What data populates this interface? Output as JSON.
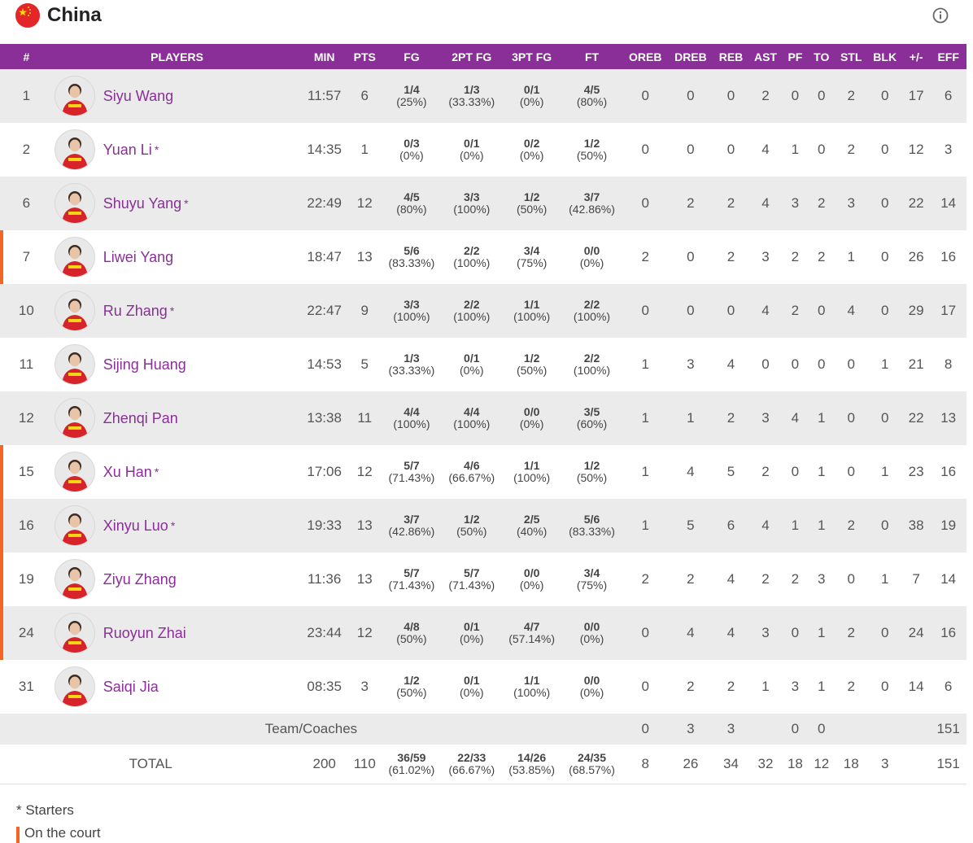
{
  "team": {
    "name": "China",
    "flag_icon": "china-flag-icon",
    "info_icon": "info-icon"
  },
  "colors": {
    "header_bg": "#8a2f98",
    "player_link": "#8a2f98",
    "on_court": "#f26522",
    "row_alt": "#ebebeb"
  },
  "columns": [
    "#",
    "PLAYERS",
    "MIN",
    "PTS",
    "FG",
    "2PT FG",
    "3PT FG",
    "FT",
    "OREB",
    "DREB",
    "REB",
    "AST",
    "PF",
    "TO",
    "STL",
    "BLK",
    "+/-",
    "EFF"
  ],
  "players": [
    {
      "num": "1",
      "name": "Siyu Wang",
      "star": "",
      "min": "11:57",
      "pts": "6",
      "fg": "1/4",
      "fg_pct": "(25%)",
      "fg2": "1/3",
      "fg2_pct": "(33.33%)",
      "fg3": "0/1",
      "fg3_pct": "(0%)",
      "ft": "4/5",
      "ft_pct": "(80%)",
      "oreb": "0",
      "dreb": "0",
      "reb": "0",
      "ast": "2",
      "pf": "0",
      "to": "0",
      "stl": "2",
      "blk": "0",
      "pm": "17",
      "eff": "6",
      "on_court": false
    },
    {
      "num": "2",
      "name": "Yuan Li",
      "star": "*",
      "min": "14:35",
      "pts": "1",
      "fg": "0/3",
      "fg_pct": "(0%)",
      "fg2": "0/1",
      "fg2_pct": "(0%)",
      "fg3": "0/2",
      "fg3_pct": "(0%)",
      "ft": "1/2",
      "ft_pct": "(50%)",
      "oreb": "0",
      "dreb": "0",
      "reb": "0",
      "ast": "4",
      "pf": "1",
      "to": "0",
      "stl": "2",
      "blk": "0",
      "pm": "12",
      "eff": "3",
      "on_court": false
    },
    {
      "num": "6",
      "name": "Shuyu Yang",
      "star": "*",
      "min": "22:49",
      "pts": "12",
      "fg": "4/5",
      "fg_pct": "(80%)",
      "fg2": "3/3",
      "fg2_pct": "(100%)",
      "fg3": "1/2",
      "fg3_pct": "(50%)",
      "ft": "3/7",
      "ft_pct": "(42.86%)",
      "oreb": "0",
      "dreb": "2",
      "reb": "2",
      "ast": "4",
      "pf": "3",
      "to": "2",
      "stl": "3",
      "blk": "0",
      "pm": "22",
      "eff": "14",
      "on_court": false
    },
    {
      "num": "7",
      "name": "Liwei Yang",
      "star": "",
      "min": "18:47",
      "pts": "13",
      "fg": "5/6",
      "fg_pct": "(83.33%)",
      "fg2": "2/2",
      "fg2_pct": "(100%)",
      "fg3": "3/4",
      "fg3_pct": "(75%)",
      "ft": "0/0",
      "ft_pct": "(0%)",
      "oreb": "2",
      "dreb": "0",
      "reb": "2",
      "ast": "3",
      "pf": "2",
      "to": "2",
      "stl": "1",
      "blk": "0",
      "pm": "26",
      "eff": "16",
      "on_court": true
    },
    {
      "num": "10",
      "name": "Ru Zhang",
      "star": "*",
      "min": "22:47",
      "pts": "9",
      "fg": "3/3",
      "fg_pct": "(100%)",
      "fg2": "2/2",
      "fg2_pct": "(100%)",
      "fg3": "1/1",
      "fg3_pct": "(100%)",
      "ft": "2/2",
      "ft_pct": "(100%)",
      "oreb": "0",
      "dreb": "0",
      "reb": "0",
      "ast": "4",
      "pf": "2",
      "to": "0",
      "stl": "4",
      "blk": "0",
      "pm": "29",
      "eff": "17",
      "on_court": false
    },
    {
      "num": "11",
      "name": "Sijing Huang",
      "star": "",
      "min": "14:53",
      "pts": "5",
      "fg": "1/3",
      "fg_pct": "(33.33%)",
      "fg2": "0/1",
      "fg2_pct": "(0%)",
      "fg3": "1/2",
      "fg3_pct": "(50%)",
      "ft": "2/2",
      "ft_pct": "(100%)",
      "oreb": "1",
      "dreb": "3",
      "reb": "4",
      "ast": "0",
      "pf": "0",
      "to": "0",
      "stl": "0",
      "blk": "1",
      "pm": "21",
      "eff": "8",
      "on_court": false
    },
    {
      "num": "12",
      "name": "Zhenqi Pan",
      "star": "",
      "min": "13:38",
      "pts": "11",
      "fg": "4/4",
      "fg_pct": "(100%)",
      "fg2": "4/4",
      "fg2_pct": "(100%)",
      "fg3": "0/0",
      "fg3_pct": "(0%)",
      "ft": "3/5",
      "ft_pct": "(60%)",
      "oreb": "1",
      "dreb": "1",
      "reb": "2",
      "ast": "3",
      "pf": "4",
      "to": "1",
      "stl": "0",
      "blk": "0",
      "pm": "22",
      "eff": "13",
      "on_court": false
    },
    {
      "num": "15",
      "name": "Xu Han",
      "star": "*",
      "min": "17:06",
      "pts": "12",
      "fg": "5/7",
      "fg_pct": "(71.43%)",
      "fg2": "4/6",
      "fg2_pct": "(66.67%)",
      "fg3": "1/1",
      "fg3_pct": "(100%)",
      "ft": "1/2",
      "ft_pct": "(50%)",
      "oreb": "1",
      "dreb": "4",
      "reb": "5",
      "ast": "2",
      "pf": "0",
      "to": "1",
      "stl": "0",
      "blk": "1",
      "pm": "23",
      "eff": "16",
      "on_court": true
    },
    {
      "num": "16",
      "name": "Xinyu Luo",
      "star": "*",
      "min": "19:33",
      "pts": "13",
      "fg": "3/7",
      "fg_pct": "(42.86%)",
      "fg2": "1/2",
      "fg2_pct": "(50%)",
      "fg3": "2/5",
      "fg3_pct": "(40%)",
      "ft": "5/6",
      "ft_pct": "(83.33%)",
      "oreb": "1",
      "dreb": "5",
      "reb": "6",
      "ast": "4",
      "pf": "1",
      "to": "1",
      "stl": "2",
      "blk": "0",
      "pm": "38",
      "eff": "19",
      "on_court": true
    },
    {
      "num": "19",
      "name": "Ziyu Zhang",
      "star": "",
      "min": "11:36",
      "pts": "13",
      "fg": "5/7",
      "fg_pct": "(71.43%)",
      "fg2": "5/7",
      "fg2_pct": "(71.43%)",
      "fg3": "0/0",
      "fg3_pct": "(0%)",
      "ft": "3/4",
      "ft_pct": "(75%)",
      "oreb": "2",
      "dreb": "2",
      "reb": "4",
      "ast": "2",
      "pf": "2",
      "to": "3",
      "stl": "0",
      "blk": "1",
      "pm": "7",
      "eff": "14",
      "on_court": true
    },
    {
      "num": "24",
      "name": "Ruoyun Zhai",
      "star": "",
      "min": "23:44",
      "pts": "12",
      "fg": "4/8",
      "fg_pct": "(50%)",
      "fg2": "0/1",
      "fg2_pct": "(0%)",
      "fg3": "4/7",
      "fg3_pct": "(57.14%)",
      "ft": "0/0",
      "ft_pct": "(0%)",
      "oreb": "0",
      "dreb": "4",
      "reb": "4",
      "ast": "3",
      "pf": "0",
      "to": "1",
      "stl": "2",
      "blk": "0",
      "pm": "24",
      "eff": "16",
      "on_court": true
    },
    {
      "num": "31",
      "name": "Saiqi Jia",
      "star": "",
      "min": "08:35",
      "pts": "3",
      "fg": "1/2",
      "fg_pct": "(50%)",
      "fg2": "0/1",
      "fg2_pct": "(0%)",
      "fg3": "1/1",
      "fg3_pct": "(100%)",
      "ft": "0/0",
      "ft_pct": "(0%)",
      "oreb": "0",
      "dreb": "2",
      "reb": "2",
      "ast": "1",
      "pf": "3",
      "to": "1",
      "stl": "2",
      "blk": "0",
      "pm": "14",
      "eff": "6",
      "on_court": false
    }
  ],
  "team_coaches": {
    "label": "Team/Coaches",
    "oreb": "0",
    "dreb": "3",
    "reb": "3",
    "pf": "0",
    "to": "0",
    "eff": "151"
  },
  "total": {
    "label": "TOTAL",
    "min": "200",
    "pts": "110",
    "fg": "36/59",
    "fg_pct": "(61.02%)",
    "fg2": "22/33",
    "fg2_pct": "(66.67%)",
    "fg3": "14/26",
    "fg3_pct": "(53.85%)",
    "ft": "24/35",
    "ft_pct": "(68.57%)",
    "oreb": "8",
    "dreb": "26",
    "reb": "34",
    "ast": "32",
    "pf": "18",
    "to": "12",
    "stl": "18",
    "blk": "3",
    "eff": "151"
  },
  "legend": {
    "starters": "* Starters",
    "on_court": "On the court"
  }
}
